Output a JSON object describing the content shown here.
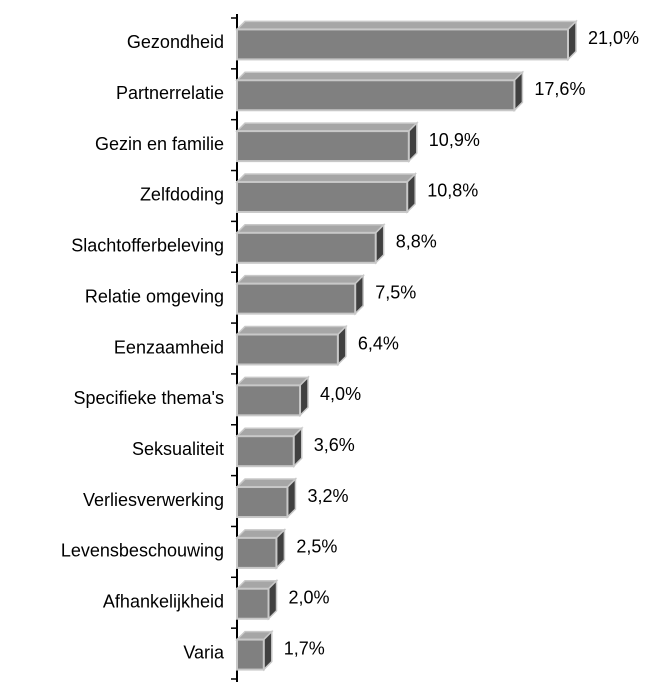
{
  "chart_data": {
    "type": "bar",
    "orientation": "horizontal",
    "categories": [
      "Gezondheid",
      "Partnerrelatie",
      "Gezin en familie",
      "Zelfdoding",
      "Slachtofferbeleving",
      "Relatie omgeving",
      "Eenzaamheid",
      "Specifieke thema's",
      "Seksualiteit",
      "Verliesverwerking",
      "Levensbeschouwing",
      "Afhankelijkheid",
      "Varia"
    ],
    "values": [
      21.0,
      17.6,
      10.9,
      10.8,
      8.8,
      7.5,
      6.4,
      4.0,
      3.6,
      3.2,
      2.5,
      2.0,
      1.7
    ],
    "value_labels": [
      "21,0%",
      "17,6%",
      "10,9%",
      "10,8%",
      "8,8%",
      "7,5%",
      "6,4%",
      "4,0%",
      "3,6%",
      "3,2%",
      "2,5%",
      "2,0%",
      "1,7%"
    ],
    "color": "#808080"
  }
}
